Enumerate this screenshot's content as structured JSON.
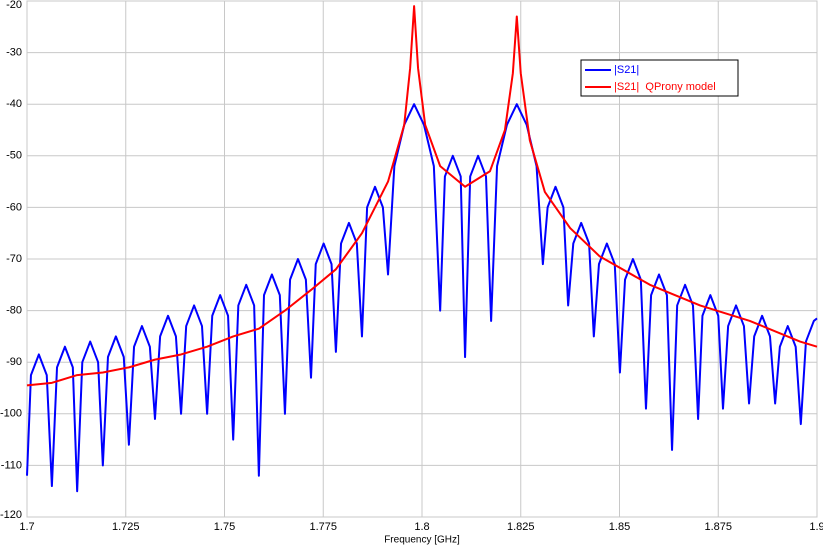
{
  "chart_data": {
    "type": "line",
    "xlabel": "Frequency [GHz]",
    "xlim": [
      1.7,
      1.9
    ],
    "xticks": [
      1.7,
      1.725,
      1.75,
      1.775,
      1.8,
      1.825,
      1.85,
      1.875,
      1.9
    ],
    "ylim": [
      -120,
      -20
    ],
    "yticks": [
      -120,
      -110,
      -100,
      -90,
      -80,
      -70,
      -60,
      -50,
      -40,
      -30,
      -20
    ],
    "grid": true,
    "legend": "upper-right",
    "series": [
      {
        "name": "|S21|",
        "color": "#0000ff",
        "x": [
          1.7,
          1.701,
          1.703,
          1.705,
          1.7063,
          1.7076,
          1.7096,
          1.7116,
          1.7127,
          1.714,
          1.716,
          1.718,
          1.7192,
          1.7205,
          1.7225,
          1.7245,
          1.7258,
          1.7271,
          1.7291,
          1.7311,
          1.7324,
          1.7337,
          1.7357,
          1.7377,
          1.739,
          1.7403,
          1.7423,
          1.7443,
          1.7456,
          1.7469,
          1.7489,
          1.7509,
          1.7522,
          1.7535,
          1.7555,
          1.7575,
          1.7587,
          1.76,
          1.762,
          1.764,
          1.7653,
          1.7666,
          1.7686,
          1.7706,
          1.7719,
          1.7731,
          1.7751,
          1.7771,
          1.7782,
          1.7795,
          1.7815,
          1.7835,
          1.7848,
          1.7861,
          1.7881,
          1.7901,
          1.7914,
          1.793,
          1.7955,
          1.798,
          1.8005,
          1.803,
          1.8046,
          1.8058,
          1.8078,
          1.8098,
          1.8109,
          1.8122,
          1.8142,
          1.8162,
          1.8175,
          1.819,
          1.8215,
          1.824,
          1.8265,
          1.829,
          1.8306,
          1.8318,
          1.8338,
          1.8358,
          1.837,
          1.8383,
          1.8403,
          1.8423,
          1.8435,
          1.8448,
          1.8468,
          1.8488,
          1.8501,
          1.8514,
          1.8534,
          1.8554,
          1.8567,
          1.858,
          1.86,
          1.862,
          1.8633,
          1.8646,
          1.8666,
          1.8686,
          1.8699,
          1.871,
          1.873,
          1.875,
          1.8762,
          1.8775,
          1.8795,
          1.8815,
          1.8828,
          1.8841,
          1.8861,
          1.8881,
          1.8894,
          1.8906,
          1.8926,
          1.8946,
          1.8959,
          1.8972,
          1.8992,
          1.9
        ],
        "values": [
          -112,
          -92.5,
          -88.5,
          -92.5,
          -114,
          -91,
          -87,
          -91,
          -115,
          -90,
          -86,
          -90,
          -110,
          -89,
          -85,
          -89,
          -106,
          -87,
          -83,
          -87,
          -101,
          -85,
          -81,
          -85,
          -100,
          -83,
          -79,
          -83,
          -100,
          -81,
          -77,
          -81,
          -105,
          -79,
          -75,
          -79,
          -112,
          -77,
          -73,
          -77,
          -100,
          -74,
          -70,
          -74,
          -93,
          -71,
          -67,
          -71,
          -88,
          -67,
          -63,
          -67,
          -85,
          -60,
          -56,
          -60,
          -73,
          -52,
          -44,
          -40,
          -44,
          -52,
          -80,
          -54,
          -50,
          -54,
          -89,
          -54,
          -50,
          -54,
          -82,
          -52,
          -44,
          -40,
          -44,
          -52,
          -71,
          -60,
          -56,
          -60,
          -79,
          -67,
          -63,
          -67,
          -85,
          -71,
          -67,
          -71,
          -92,
          -74,
          -70,
          -74,
          -99,
          -77,
          -73,
          -77,
          -107,
          -79,
          -75,
          -79,
          -101,
          -81,
          -77,
          -81,
          -99,
          -83,
          -79,
          -83,
          -98,
          -85,
          -81,
          -85,
          -98,
          -87,
          -83,
          -87,
          -102,
          -86,
          -82,
          -81.5
        ]
      },
      {
        "name": "|S21|  QProny model",
        "color": "#ff0000",
        "x": [
          1.7,
          1.7063,
          1.7127,
          1.7192,
          1.7258,
          1.7324,
          1.739,
          1.7456,
          1.7522,
          1.7587,
          1.7653,
          1.7719,
          1.7782,
          1.7848,
          1.7914,
          1.7955,
          1.797,
          1.798,
          1.799,
          1.8008,
          1.8046,
          1.8109,
          1.8172,
          1.821,
          1.823,
          1.824,
          1.825,
          1.8273,
          1.8311,
          1.8375,
          1.845,
          1.8577,
          1.8704,
          1.883,
          1.8957,
          1.9
        ],
        "values": [
          -94.5,
          -94,
          -92.5,
          -92,
          -91,
          -89.5,
          -88.5,
          -87,
          -85,
          -83.5,
          -80,
          -76,
          -72,
          -65,
          -55,
          -44,
          -33,
          -21,
          -33,
          -44,
          -52,
          -56,
          -53,
          -45,
          -34,
          -23,
          -34,
          -47,
          -57,
          -64,
          -69.5,
          -75,
          -79,
          -82,
          -86,
          -87
        ]
      }
    ]
  }
}
